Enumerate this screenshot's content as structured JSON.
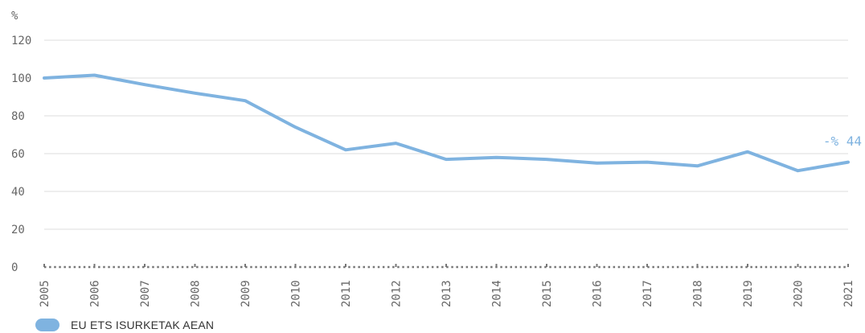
{
  "chart_data": {
    "type": "line",
    "title": "",
    "ylabel": "%",
    "xlabel": "",
    "ylim": [
      0,
      120
    ],
    "yticks": [
      0,
      20,
      40,
      60,
      80,
      100,
      120
    ],
    "grid": true,
    "legend_position": "bottom-left",
    "categories": [
      "2005",
      "2006",
      "2007",
      "2008",
      "2009",
      "2010",
      "2011",
      "2012",
      "2013",
      "2014",
      "2015",
      "2016",
      "2017",
      "2018",
      "2019",
      "2020",
      "2021"
    ],
    "series": [
      {
        "name": "EU ETS ISURKETAK AEAN",
        "color": "#7fb3e0",
        "values": [
          100,
          101.5,
          96.5,
          92,
          88,
          74,
          62,
          65.5,
          57,
          58,
          57,
          55,
          55.5,
          53.5,
          61,
          51,
          55.5
        ]
      }
    ],
    "annotations": [
      {
        "text": "-% 44",
        "x": "2021",
        "y": 60
      }
    ]
  }
}
